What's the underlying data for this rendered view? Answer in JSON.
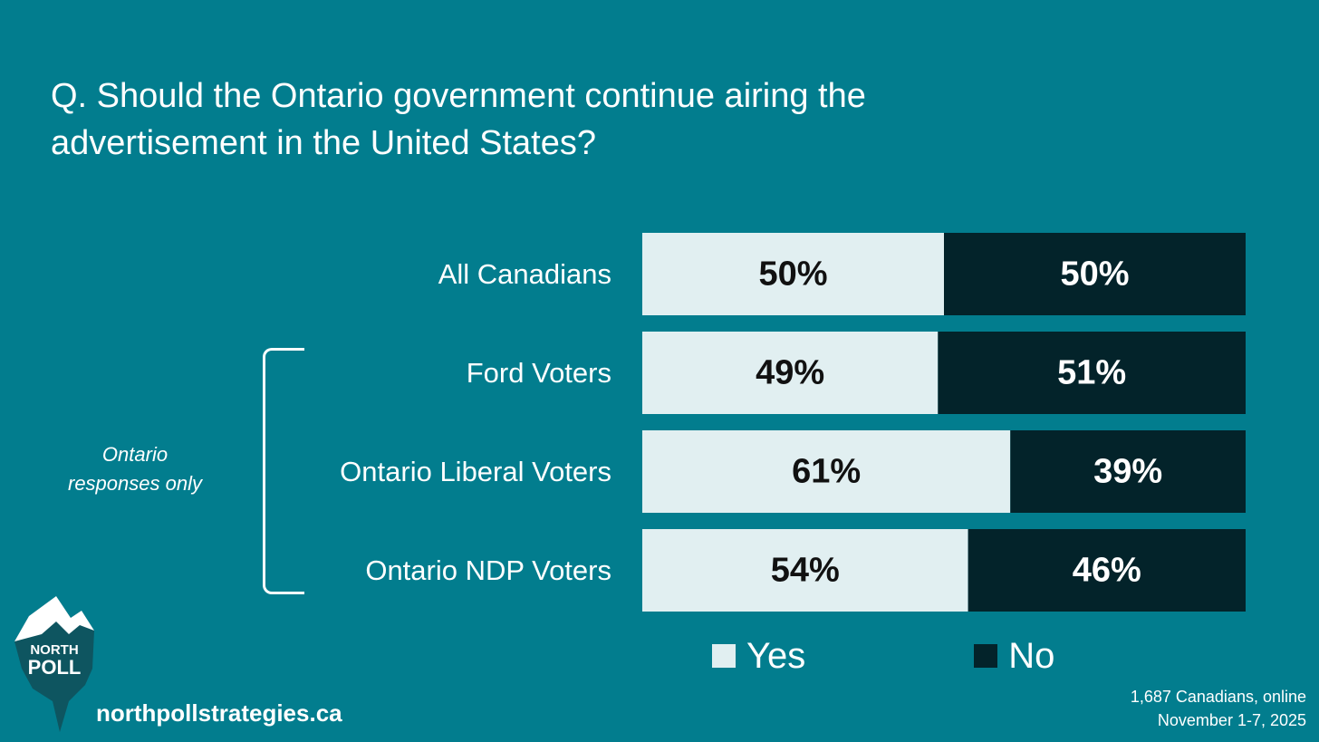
{
  "chart_data": {
    "type": "bar",
    "orientation": "horizontal",
    "stacked": true,
    "title": "Q. Should the Ontario government continue airing the advertisement in the United States?",
    "categories": [
      "All Canadians",
      "Ford Voters",
      "Ontario Liberal Voters",
      "Ontario NDP Voters"
    ],
    "series": [
      {
        "name": "Yes",
        "values": [
          50,
          49,
          61,
          54
        ],
        "labels": [
          "50%",
          "49%",
          "61%",
          "54%"
        ],
        "color": "#e1eff1"
      },
      {
        "name": "No",
        "values": [
          50,
          51,
          39,
          46
        ],
        "labels": [
          "50%",
          "51%",
          "39%",
          "46%"
        ],
        "color": "#03232a"
      }
    ],
    "xlim": [
      0,
      100
    ],
    "legend_position": "bottom"
  },
  "group_note": {
    "line1": "Ontario",
    "line2": "responses only"
  },
  "branding": {
    "logo_line1": "NORTH",
    "logo_line2": "POLL",
    "website": "northpollstrategies.ca"
  },
  "footnote": {
    "line1": "1,687 Canadians, online",
    "line2": "November 1-7, 2025"
  },
  "colors": {
    "background": "#027d8e",
    "yes": "#e1eff1",
    "no": "#03232a"
  }
}
